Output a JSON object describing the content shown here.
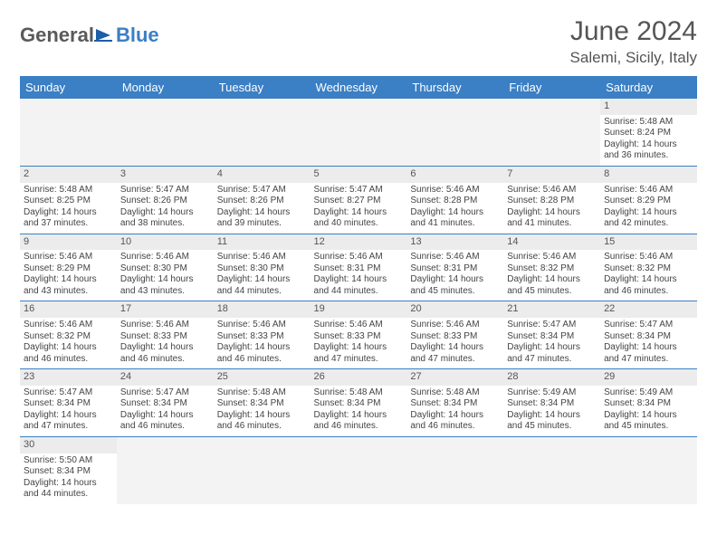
{
  "logo": {
    "main": "General",
    "sub": "Blue"
  },
  "title": "June 2024",
  "subtitle": "Salemi, Sicily, Italy",
  "colors": {
    "header_bg": "#3b7fc4",
    "header_text": "#ffffff",
    "daynum_bg": "#ececec",
    "row_divider": "#3b7fc4",
    "text": "#444444"
  },
  "day_headers": [
    "Sunday",
    "Monday",
    "Tuesday",
    "Wednesday",
    "Thursday",
    "Friday",
    "Saturday"
  ],
  "weeks": [
    [
      null,
      null,
      null,
      null,
      null,
      null,
      {
        "n": "1",
        "sr": "5:48 AM",
        "ss": "8:24 PM",
        "dl": "14 hours and 36 minutes."
      }
    ],
    [
      {
        "n": "2",
        "sr": "5:48 AM",
        "ss": "8:25 PM",
        "dl": "14 hours and 37 minutes."
      },
      {
        "n": "3",
        "sr": "5:47 AM",
        "ss": "8:26 PM",
        "dl": "14 hours and 38 minutes."
      },
      {
        "n": "4",
        "sr": "5:47 AM",
        "ss": "8:26 PM",
        "dl": "14 hours and 39 minutes."
      },
      {
        "n": "5",
        "sr": "5:47 AM",
        "ss": "8:27 PM",
        "dl": "14 hours and 40 minutes."
      },
      {
        "n": "6",
        "sr": "5:46 AM",
        "ss": "8:28 PM",
        "dl": "14 hours and 41 minutes."
      },
      {
        "n": "7",
        "sr": "5:46 AM",
        "ss": "8:28 PM",
        "dl": "14 hours and 41 minutes."
      },
      {
        "n": "8",
        "sr": "5:46 AM",
        "ss": "8:29 PM",
        "dl": "14 hours and 42 minutes."
      }
    ],
    [
      {
        "n": "9",
        "sr": "5:46 AM",
        "ss": "8:29 PM",
        "dl": "14 hours and 43 minutes."
      },
      {
        "n": "10",
        "sr": "5:46 AM",
        "ss": "8:30 PM",
        "dl": "14 hours and 43 minutes."
      },
      {
        "n": "11",
        "sr": "5:46 AM",
        "ss": "8:30 PM",
        "dl": "14 hours and 44 minutes."
      },
      {
        "n": "12",
        "sr": "5:46 AM",
        "ss": "8:31 PM",
        "dl": "14 hours and 44 minutes."
      },
      {
        "n": "13",
        "sr": "5:46 AM",
        "ss": "8:31 PM",
        "dl": "14 hours and 45 minutes."
      },
      {
        "n": "14",
        "sr": "5:46 AM",
        "ss": "8:32 PM",
        "dl": "14 hours and 45 minutes."
      },
      {
        "n": "15",
        "sr": "5:46 AM",
        "ss": "8:32 PM",
        "dl": "14 hours and 46 minutes."
      }
    ],
    [
      {
        "n": "16",
        "sr": "5:46 AM",
        "ss": "8:32 PM",
        "dl": "14 hours and 46 minutes."
      },
      {
        "n": "17",
        "sr": "5:46 AM",
        "ss": "8:33 PM",
        "dl": "14 hours and 46 minutes."
      },
      {
        "n": "18",
        "sr": "5:46 AM",
        "ss": "8:33 PM",
        "dl": "14 hours and 46 minutes."
      },
      {
        "n": "19",
        "sr": "5:46 AM",
        "ss": "8:33 PM",
        "dl": "14 hours and 47 minutes."
      },
      {
        "n": "20",
        "sr": "5:46 AM",
        "ss": "8:33 PM",
        "dl": "14 hours and 47 minutes."
      },
      {
        "n": "21",
        "sr": "5:47 AM",
        "ss": "8:34 PM",
        "dl": "14 hours and 47 minutes."
      },
      {
        "n": "22",
        "sr": "5:47 AM",
        "ss": "8:34 PM",
        "dl": "14 hours and 47 minutes."
      }
    ],
    [
      {
        "n": "23",
        "sr": "5:47 AM",
        "ss": "8:34 PM",
        "dl": "14 hours and 47 minutes."
      },
      {
        "n": "24",
        "sr": "5:47 AM",
        "ss": "8:34 PM",
        "dl": "14 hours and 46 minutes."
      },
      {
        "n": "25",
        "sr": "5:48 AM",
        "ss": "8:34 PM",
        "dl": "14 hours and 46 minutes."
      },
      {
        "n": "26",
        "sr": "5:48 AM",
        "ss": "8:34 PM",
        "dl": "14 hours and 46 minutes."
      },
      {
        "n": "27",
        "sr": "5:48 AM",
        "ss": "8:34 PM",
        "dl": "14 hours and 46 minutes."
      },
      {
        "n": "28",
        "sr": "5:49 AM",
        "ss": "8:34 PM",
        "dl": "14 hours and 45 minutes."
      },
      {
        "n": "29",
        "sr": "5:49 AM",
        "ss": "8:34 PM",
        "dl": "14 hours and 45 minutes."
      }
    ],
    [
      {
        "n": "30",
        "sr": "5:50 AM",
        "ss": "8:34 PM",
        "dl": "14 hours and 44 minutes."
      },
      null,
      null,
      null,
      null,
      null,
      null
    ]
  ],
  "labels": {
    "sunrise": "Sunrise:",
    "sunset": "Sunset:",
    "daylight": "Daylight:"
  }
}
